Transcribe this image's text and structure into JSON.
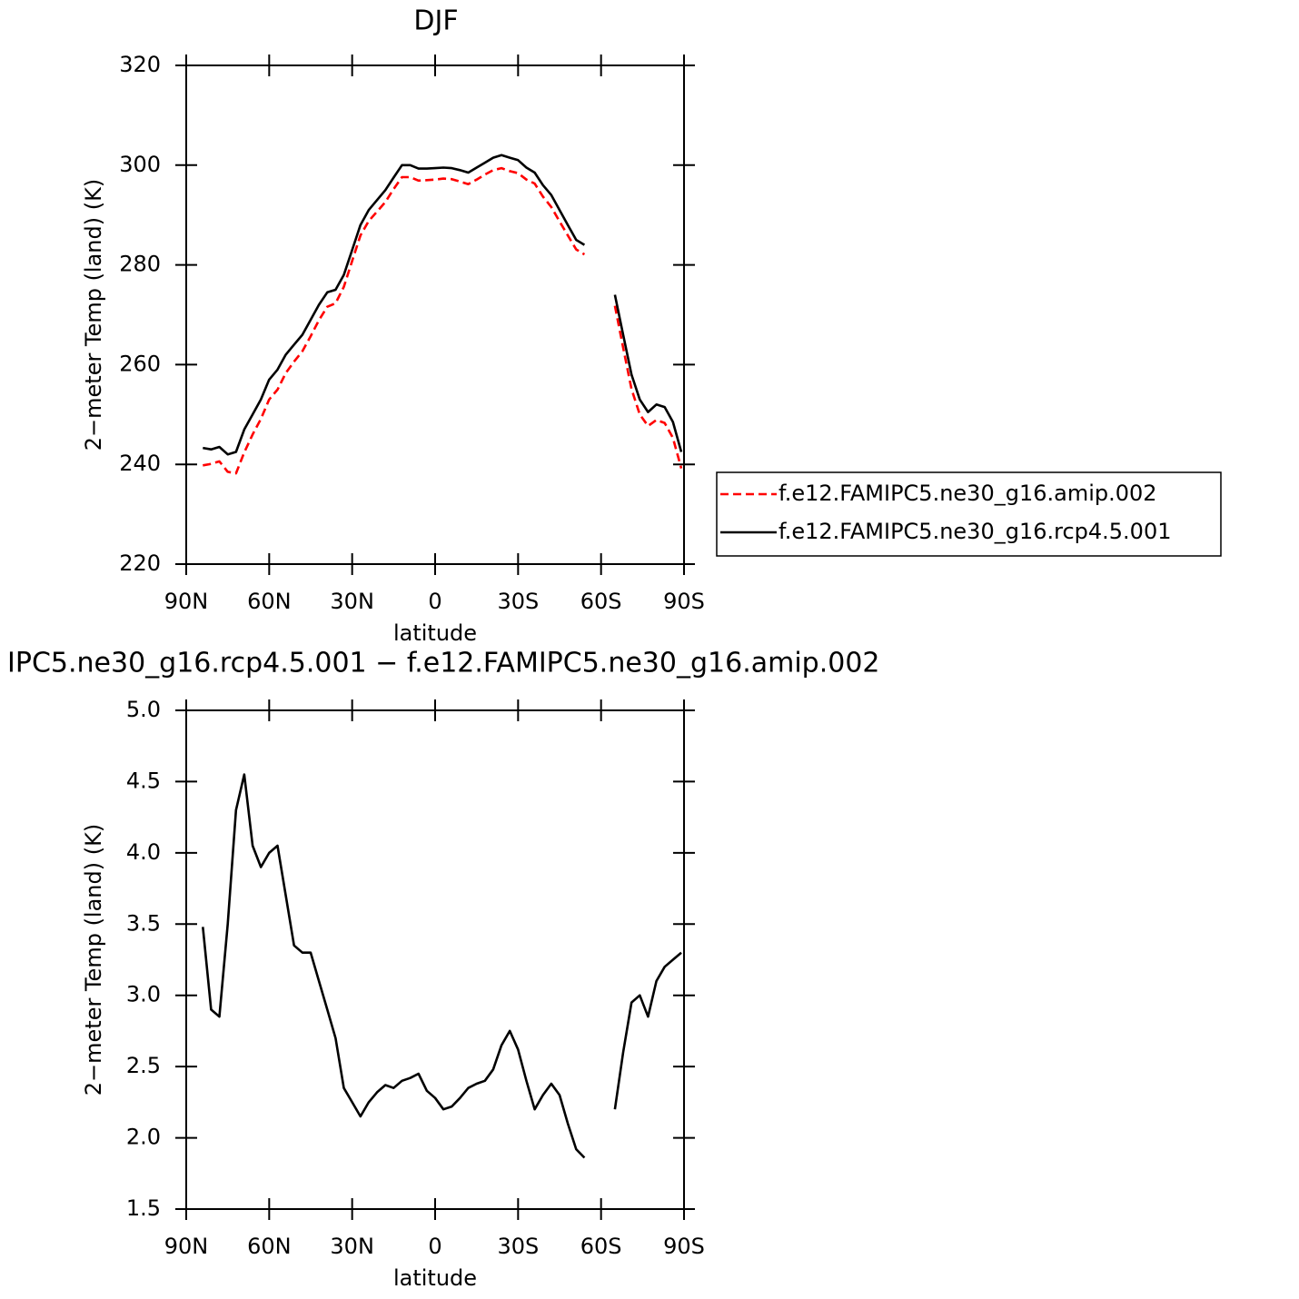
{
  "chart_data": [
    {
      "type": "line",
      "title": "DJF",
      "xlabel": "latitude",
      "ylabel": "2−meter Temp (land) (K)",
      "x": [
        84,
        81,
        78,
        75,
        72,
        69,
        66,
        63,
        60,
        57,
        54,
        51,
        48,
        45,
        42,
        39,
        36,
        33,
        30,
        27,
        24,
        21,
        18,
        15,
        12,
        9,
        6,
        3,
        0,
        -3,
        -6,
        -9,
        -12,
        -15,
        -18,
        -21,
        -24,
        -27,
        -30,
        -33,
        -36,
        -39,
        -42,
        -45,
        -48,
        -51,
        -54,
        -60,
        -65,
        -68,
        -71,
        -74,
        -77,
        -80,
        -83,
        -86,
        -89
      ],
      "series": [
        {
          "name": "f.e12.FAMIPC5.ne30_g16.amip.002",
          "color": "#ff0000",
          "linestyle": "dashed",
          "values": [
            239.8,
            240.1,
            240.6,
            238.5,
            238.2,
            242.4,
            246.0,
            249.1,
            253.0,
            255.0,
            258.3,
            260.6,
            262.7,
            265.7,
            268.9,
            271.6,
            272.3,
            275.6,
            280.8,
            285.9,
            288.8,
            290.7,
            292.6,
            295.2,
            297.6,
            297.6,
            296.9,
            297.0,
            297.1,
            297.3,
            297.2,
            296.7,
            296.2,
            297.1,
            298.1,
            299.0,
            299.4,
            298.8,
            298.4,
            297.1,
            296.3,
            293.7,
            291.6,
            288.7,
            285.9,
            283.1,
            282.1,
            null,
            271.8,
            263.4,
            255.1,
            250.0,
            247.7,
            248.9,
            248.3,
            245.3,
            239.2
          ]
        },
        {
          "name": "f.e12.FAMIPC5.ne30_g16.rcp4.5.001",
          "color": "#000000",
          "linestyle": "solid",
          "values": [
            243.3,
            243.0,
            243.5,
            242.0,
            242.5,
            247.0,
            250.0,
            253.0,
            257.0,
            259.0,
            262.0,
            264.0,
            266.0,
            269.0,
            272.0,
            274.5,
            275.0,
            278.0,
            283.0,
            288.0,
            291.0,
            293.0,
            295.0,
            297.5,
            300.0,
            300.0,
            299.3,
            299.3,
            299.4,
            299.5,
            299.4,
            299.0,
            298.5,
            299.5,
            300.5,
            301.5,
            302.0,
            301.5,
            301.0,
            299.5,
            298.5,
            296.0,
            294.0,
            291.0,
            288.0,
            285.0,
            284.0,
            null,
            274.0,
            266.0,
            258.0,
            253.0,
            250.5,
            252.0,
            251.5,
            248.5,
            242.5
          ]
        }
      ],
      "xlim": [
        90,
        -90
      ],
      "xticks": [
        {
          "value": 90,
          "label": "90N"
        },
        {
          "value": 60,
          "label": "60N"
        },
        {
          "value": 30,
          "label": "30N"
        },
        0,
        {
          "value": -30,
          "label": "30S"
        },
        {
          "value": -60,
          "label": "60S"
        },
        {
          "value": -90,
          "label": "90S"
        }
      ],
      "ylim": [
        220,
        320
      ],
      "yticks": [
        220,
        240,
        260,
        280,
        300,
        320
      ],
      "legend": "right"
    },
    {
      "type": "line",
      "title": "IPC5.ne30_g16.rcp4.5.001 − f.e12.FAMIPC5.ne30_g16.amip.002",
      "xlabel": "latitude",
      "ylabel": "2−meter Temp (land) (K)",
      "x": [
        84,
        81,
        78,
        75,
        72,
        69,
        66,
        63,
        60,
        57,
        54,
        51,
        48,
        45,
        42,
        39,
        36,
        33,
        30,
        27,
        24,
        21,
        18,
        15,
        12,
        9,
        6,
        3,
        0,
        -3,
        -6,
        -9,
        -12,
        -15,
        -18,
        -21,
        -24,
        -27,
        -30,
        -33,
        -36,
        -39,
        -42,
        -45,
        -48,
        -51,
        -54,
        -60,
        -65,
        -68,
        -71,
        -74,
        -77,
        -80,
        -83,
        -86,
        -89
      ],
      "series": [
        {
          "color": "#000000",
          "linestyle": "solid",
          "values": [
            3.48,
            2.9,
            2.85,
            3.5,
            4.3,
            4.55,
            4.05,
            3.9,
            4.0,
            4.05,
            3.7,
            3.35,
            3.3,
            3.3,
            3.1,
            2.9,
            2.7,
            2.35,
            2.25,
            2.15,
            2.25,
            2.32,
            2.37,
            2.35,
            2.4,
            2.42,
            2.45,
            2.33,
            2.28,
            2.2,
            2.22,
            2.28,
            2.35,
            2.38,
            2.4,
            2.48,
            2.65,
            2.75,
            2.62,
            2.4,
            2.2,
            2.3,
            2.38,
            2.3,
            2.1,
            1.92,
            1.86,
            null,
            2.2,
            2.6,
            2.95,
            3.0,
            2.85,
            3.1,
            3.2,
            3.25,
            3.3
          ]
        }
      ],
      "xlim": [
        90,
        -90
      ],
      "xticks": [
        {
          "value": 90,
          "label": "90N"
        },
        {
          "value": 60,
          "label": "60N"
        },
        {
          "value": 30,
          "label": "30N"
        },
        0,
        {
          "value": -30,
          "label": "30S"
        },
        {
          "value": -60,
          "label": "60S"
        },
        {
          "value": -90,
          "label": "90S"
        }
      ],
      "ylim": [
        1.5,
        5
      ],
      "yticks": [
        1.5,
        {
          "value": 2,
          "label": "2.0"
        },
        2.5,
        {
          "value": 3,
          "label": "3.0"
        },
        3.5,
        {
          "value": 4,
          "label": "4.0"
        },
        4.5,
        {
          "value": 5,
          "label": "5.0"
        }
      ]
    }
  ]
}
